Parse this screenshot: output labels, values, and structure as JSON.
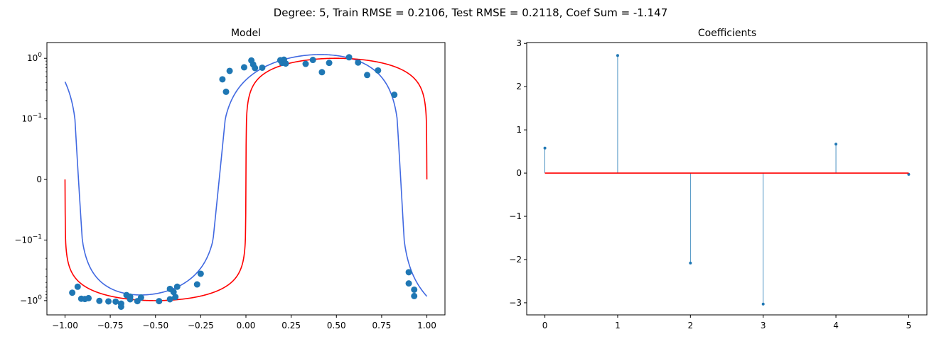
{
  "suptitle": "Degree: 5, Train RMSE = 0.2106, Test RMSE = 0.2118, Coef Sum = -1.147",
  "chart_data": [
    {
      "type": "scatter",
      "title": "Model",
      "xlabel": "",
      "ylabel": "",
      "y_scale": "symlog",
      "linthresh": 0.1,
      "xlim": [
        -1.1,
        1.1
      ],
      "ylim": [
        -1.72,
        1.82
      ],
      "xticks": [
        {
          "v": -1.0,
          "label": "−1.00"
        },
        {
          "v": -0.75,
          "label": "−0.75"
        },
        {
          "v": -0.5,
          "label": "−0.50"
        },
        {
          "v": -0.25,
          "label": "−0.25"
        },
        {
          "v": 0.0,
          "label": "0.00"
        },
        {
          "v": 0.25,
          "label": "0.25"
        },
        {
          "v": 0.5,
          "label": "0.50"
        },
        {
          "v": 0.75,
          "label": "0.75"
        },
        {
          "v": 1.0,
          "label": "1.00"
        }
      ],
      "yticks": [
        {
          "v": 1.0,
          "base": "10",
          "exp": "0",
          "sign": ""
        },
        {
          "v": 0.1,
          "base": "10",
          "exp": "−1",
          "sign": ""
        },
        {
          "v": 0.0,
          "base": "0",
          "exp": "",
          "sign": ""
        },
        {
          "v": -0.1,
          "base": "10",
          "exp": "−1",
          "sign": "−"
        },
        {
          "v": -1.0,
          "base": "10",
          "exp": "0",
          "sign": "−"
        }
      ],
      "colors": {
        "points": "#1f77b4",
        "fit": "#4169e1",
        "truth": "#ff0000"
      },
      "points": [
        [
          -0.96,
          -0.74
        ],
        [
          -0.93,
          -0.59
        ],
        [
          -0.91,
          -0.93
        ],
        [
          -0.89,
          -0.94
        ],
        [
          -0.87,
          -0.91
        ],
        [
          -0.81,
          -1.01
        ],
        [
          -0.76,
          -1.03
        ],
        [
          -0.72,
          -1.04
        ],
        [
          -0.69,
          -1.12
        ],
        [
          -0.69,
          -1.26
        ],
        [
          -0.66,
          -0.81
        ],
        [
          -0.64,
          -0.86
        ],
        [
          -0.64,
          -0.95
        ],
        [
          -0.6,
          -1.02
        ],
        [
          -0.58,
          -0.89
        ],
        [
          -0.48,
          -1.02
        ],
        [
          -0.42,
          -0.64
        ],
        [
          -0.42,
          -0.95
        ],
        [
          -0.4,
          -0.72
        ],
        [
          -0.39,
          -0.87
        ],
        [
          -0.38,
          -0.59
        ],
        [
          -0.27,
          -0.54
        ],
        [
          -0.25,
          -0.36
        ],
        [
          -0.13,
          0.45
        ],
        [
          -0.11,
          0.28
        ],
        [
          -0.09,
          0.62
        ],
        [
          -0.01,
          0.71
        ],
        [
          0.03,
          0.92
        ],
        [
          0.04,
          0.79
        ],
        [
          0.05,
          0.69
        ],
        [
          0.09,
          0.7
        ],
        [
          0.19,
          0.93
        ],
        [
          0.2,
          0.84
        ],
        [
          0.21,
          0.95
        ],
        [
          0.22,
          0.82
        ],
        [
          0.33,
          0.81
        ],
        [
          0.37,
          0.94
        ],
        [
          0.42,
          0.59
        ],
        [
          0.46,
          0.84
        ],
        [
          0.57,
          1.04
        ],
        [
          0.62,
          0.85
        ],
        [
          0.67,
          0.53
        ],
        [
          0.73,
          0.63
        ],
        [
          0.82,
          0.25
        ],
        [
          0.9,
          -0.34
        ],
        [
          0.9,
          -0.52
        ],
        [
          0.93,
          -0.66
        ],
        [
          0.93,
          -0.84
        ]
      ],
      "fit_poly": [
        0.44,
        2.89,
        -1.22,
        -4.21,
        0.56,
        0.69
      ],
      "truth_func": "sign(sin(pi*x))*sqrt(abs(sin(pi*x)))"
    },
    {
      "type": "stem",
      "title": "Coefficients",
      "xlabel": "",
      "ylabel": "",
      "xlim": [
        -0.25,
        5.25
      ],
      "ylim": [
        -3.28,
        3.02
      ],
      "categories": [
        "0",
        "1",
        "2",
        "3",
        "4",
        "5"
      ],
      "x": [
        0,
        1,
        2,
        3,
        4,
        5
      ],
      "values": [
        0.58,
        2.72,
        -2.08,
        -3.03,
        0.67,
        -0.03
      ],
      "yticks": [
        {
          "v": 3,
          "label": "3"
        },
        {
          "v": 2,
          "label": "2"
        },
        {
          "v": 1,
          "label": "1"
        },
        {
          "v": 0,
          "label": "0"
        },
        {
          "v": -1,
          "label": "−1"
        },
        {
          "v": -2,
          "label": "−2"
        },
        {
          "v": -3,
          "label": "−3"
        }
      ],
      "colors": {
        "stem": "#1f77b4",
        "baseline": "#ff0000"
      }
    }
  ]
}
